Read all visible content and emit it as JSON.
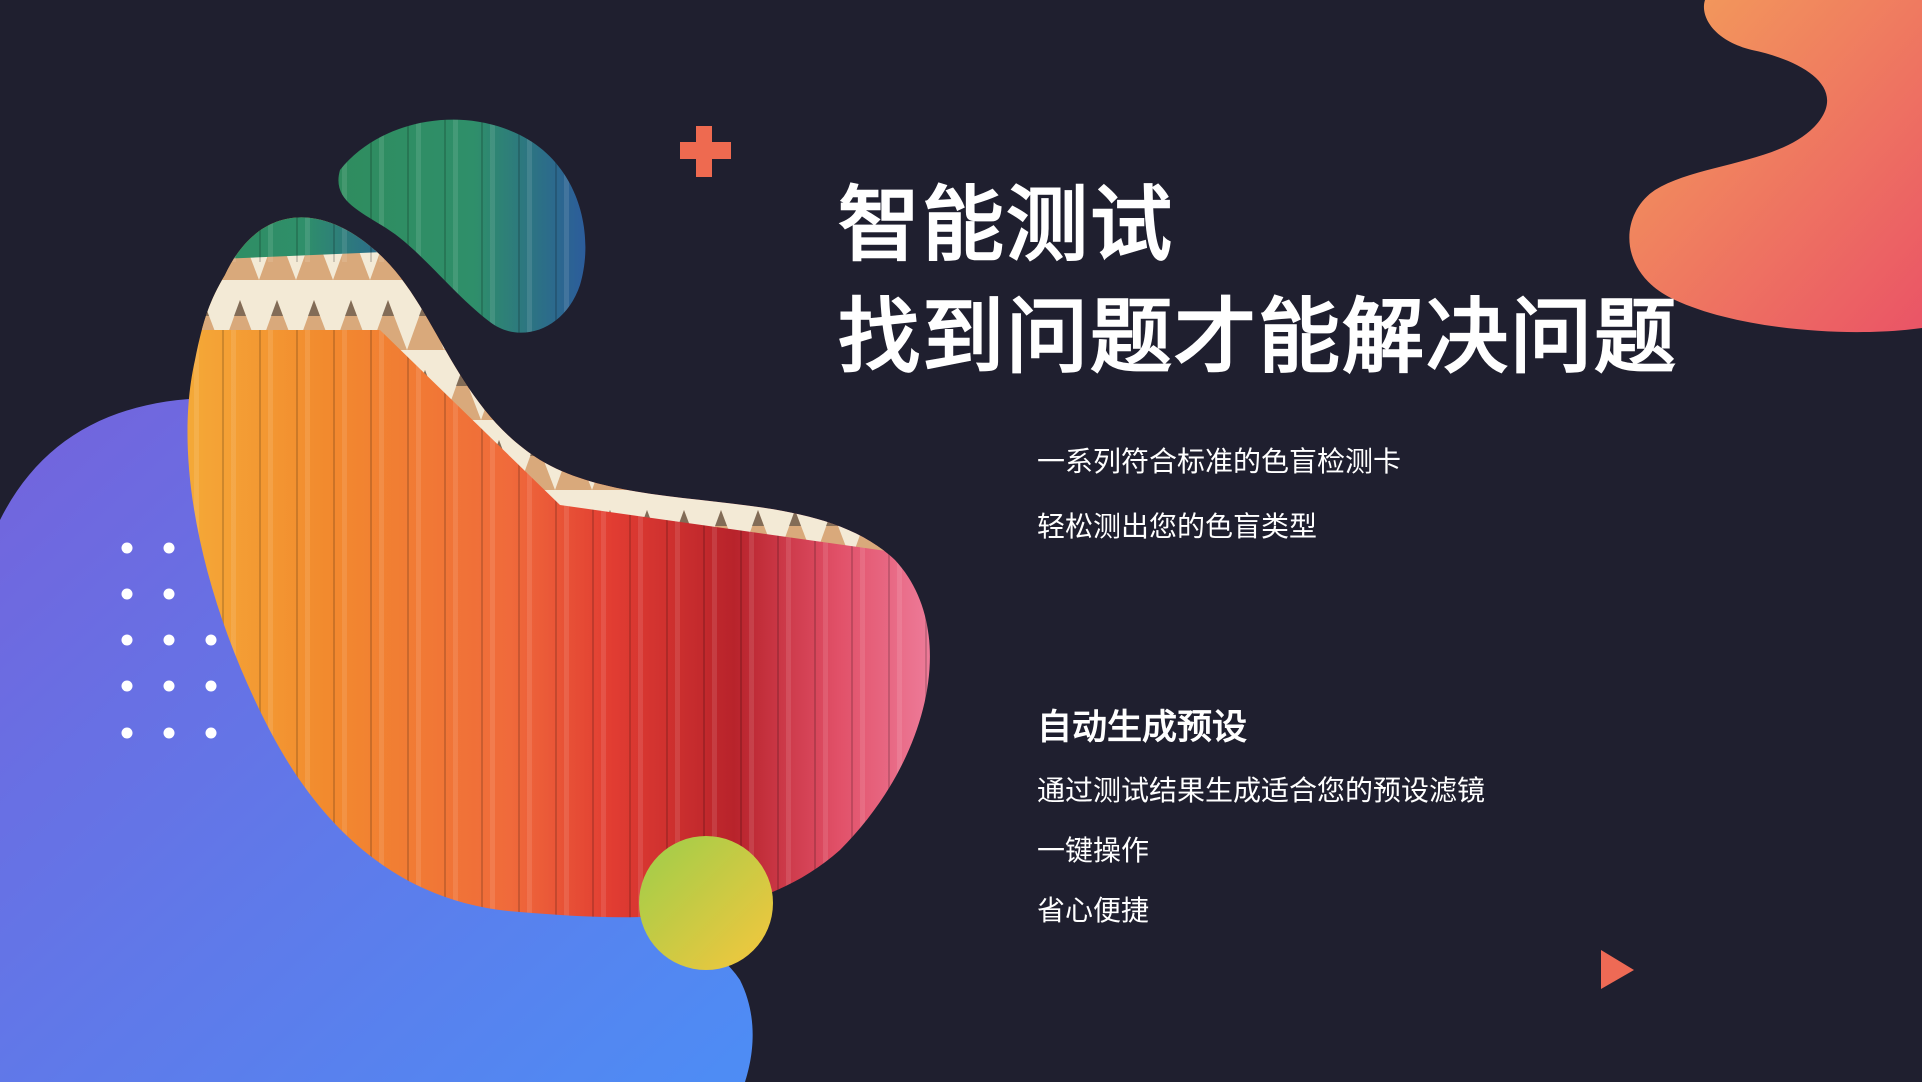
{
  "headline": {
    "line1": "智能测试",
    "line2": "找到问题才能解决问题"
  },
  "feature_one": {
    "lines": [
      "一系列符合标准的色盲检测卡",
      "轻松测出您的色盲类型"
    ]
  },
  "feature_two": {
    "title": "自动生成预设",
    "lines": [
      "通过测试结果生成适合您的预设滤镜",
      "一键操作",
      "省心便捷"
    ]
  },
  "colors": {
    "background": "#1f1f2f",
    "blue_blob_start": "#7463dc",
    "blue_blob_end": "#4d8df5",
    "orange_blob_start": "#f4a05a",
    "orange_blob_end": "#ea5466",
    "plus_accent": "#ee6a50",
    "triangle_accent": "#ee6a55",
    "circle_start": "#9cce4a",
    "circle_end": "#f7c63d"
  },
  "image": {
    "description_icon": "colored-pencils-photo"
  }
}
